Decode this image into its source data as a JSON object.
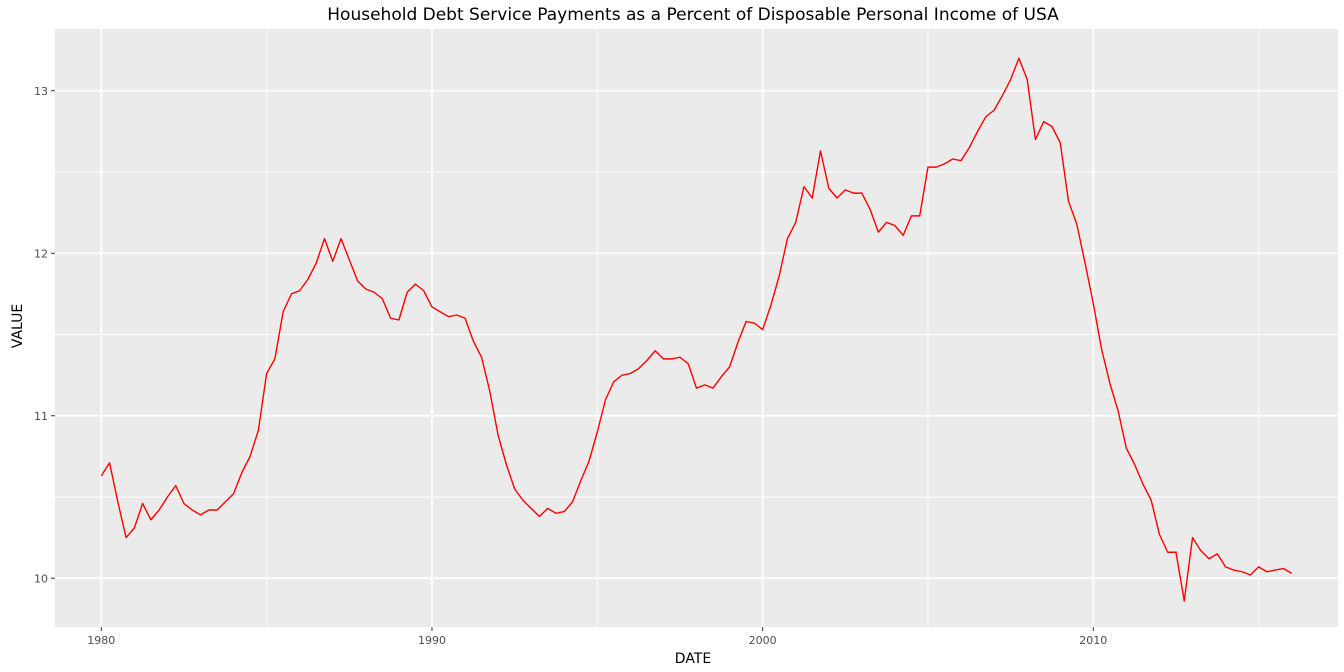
{
  "chart_data": {
    "type": "line",
    "title": "Household Debt Service Payments as a Percent of Disposable Personal Income of USA",
    "xlabel": "DATE",
    "ylabel": "VALUE",
    "xlim": [
      1978.6,
      2017.4
    ],
    "ylim": [
      9.7,
      13.38
    ],
    "x_ticks": [
      1980,
      1990,
      2000,
      2010
    ],
    "y_ticks": [
      10,
      11,
      12,
      13
    ],
    "grid": true,
    "legend": "none",
    "colors": {
      "panel_background": "#EBEBEB",
      "grid_major": "#FFFFFF",
      "series_line": "#FF0000",
      "tick_label": "#4D4D4D",
      "axis_title": "#000000"
    },
    "series": [
      {
        "points": [
          [
            1980.0,
            10.63
          ],
          [
            1980.25,
            10.71
          ],
          [
            1980.5,
            10.47
          ],
          [
            1980.75,
            10.25
          ],
          [
            1981.0,
            10.31
          ],
          [
            1981.25,
            10.46
          ],
          [
            1981.5,
            10.36
          ],
          [
            1981.75,
            10.42
          ],
          [
            1982.0,
            10.5
          ],
          [
            1982.25,
            10.57
          ],
          [
            1982.5,
            10.46
          ],
          [
            1982.75,
            10.42
          ],
          [
            1983.0,
            10.39
          ],
          [
            1983.25,
            10.42
          ],
          [
            1983.5,
            10.42
          ],
          [
            1983.75,
            10.47
          ],
          [
            1984.0,
            10.52
          ],
          [
            1984.25,
            10.65
          ],
          [
            1984.5,
            10.75
          ],
          [
            1984.75,
            10.91
          ],
          [
            1985.0,
            11.26
          ],
          [
            1985.25,
            11.35
          ],
          [
            1985.5,
            11.64
          ],
          [
            1985.75,
            11.75
          ],
          [
            1986.0,
            11.77
          ],
          [
            1986.25,
            11.84
          ],
          [
            1986.5,
            11.94
          ],
          [
            1986.75,
            12.09
          ],
          [
            1987.0,
            11.95
          ],
          [
            1987.25,
            12.09
          ],
          [
            1987.5,
            11.96
          ],
          [
            1987.75,
            11.83
          ],
          [
            1988.0,
            11.78
          ],
          [
            1988.25,
            11.76
          ],
          [
            1988.5,
            11.72
          ],
          [
            1988.75,
            11.6
          ],
          [
            1989.0,
            11.59
          ],
          [
            1989.25,
            11.76
          ],
          [
            1989.5,
            11.81
          ],
          [
            1989.75,
            11.77
          ],
          [
            1990.0,
            11.67
          ],
          [
            1990.25,
            11.64
          ],
          [
            1990.5,
            11.61
          ],
          [
            1990.75,
            11.62
          ],
          [
            1991.0,
            11.6
          ],
          [
            1991.25,
            11.46
          ],
          [
            1991.5,
            11.36
          ],
          [
            1991.75,
            11.15
          ],
          [
            1992.0,
            10.88
          ],
          [
            1992.25,
            10.7
          ],
          [
            1992.5,
            10.55
          ],
          [
            1992.75,
            10.48
          ],
          [
            1993.0,
            10.43
          ],
          [
            1993.25,
            10.38
          ],
          [
            1993.5,
            10.43
          ],
          [
            1993.75,
            10.4
          ],
          [
            1994.0,
            10.41
          ],
          [
            1994.25,
            10.47
          ],
          [
            1994.5,
            10.6
          ],
          [
            1994.75,
            10.72
          ],
          [
            1995.0,
            10.9
          ],
          [
            1995.25,
            11.1
          ],
          [
            1995.5,
            11.21
          ],
          [
            1995.75,
            11.25
          ],
          [
            1996.0,
            11.26
          ],
          [
            1996.25,
            11.29
          ],
          [
            1996.5,
            11.34
          ],
          [
            1996.75,
            11.4
          ],
          [
            1997.0,
            11.35
          ],
          [
            1997.25,
            11.35
          ],
          [
            1997.5,
            11.36
          ],
          [
            1997.75,
            11.32
          ],
          [
            1998.0,
            11.17
          ],
          [
            1998.25,
            11.19
          ],
          [
            1998.5,
            11.17
          ],
          [
            1998.75,
            11.24
          ],
          [
            1999.0,
            11.3
          ],
          [
            1999.25,
            11.45
          ],
          [
            1999.5,
            11.58
          ],
          [
            1999.75,
            11.57
          ],
          [
            2000.0,
            11.53
          ],
          [
            2000.25,
            11.68
          ],
          [
            2000.5,
            11.86
          ],
          [
            2000.75,
            12.09
          ],
          [
            2001.0,
            12.19
          ],
          [
            2001.25,
            12.41
          ],
          [
            2001.5,
            12.34
          ],
          [
            2001.75,
            12.63
          ],
          [
            2002.0,
            12.4
          ],
          [
            2002.25,
            12.34
          ],
          [
            2002.5,
            12.39
          ],
          [
            2002.75,
            12.37
          ],
          [
            2003.0,
            12.37
          ],
          [
            2003.25,
            12.27
          ],
          [
            2003.5,
            12.13
          ],
          [
            2003.75,
            12.19
          ],
          [
            2004.0,
            12.17
          ],
          [
            2004.25,
            12.11
          ],
          [
            2004.5,
            12.23
          ],
          [
            2004.75,
            12.23
          ],
          [
            2005.0,
            12.53
          ],
          [
            2005.25,
            12.53
          ],
          [
            2005.5,
            12.55
          ],
          [
            2005.75,
            12.58
          ],
          [
            2006.0,
            12.57
          ],
          [
            2006.25,
            12.65
          ],
          [
            2006.5,
            12.75
          ],
          [
            2006.75,
            12.84
          ],
          [
            2007.0,
            12.88
          ],
          [
            2007.25,
            12.97
          ],
          [
            2007.5,
            13.07
          ],
          [
            2007.75,
            13.2
          ],
          [
            2008.0,
            13.07
          ],
          [
            2008.25,
            12.7
          ],
          [
            2008.5,
            12.81
          ],
          [
            2008.75,
            12.78
          ],
          [
            2009.0,
            12.68
          ],
          [
            2009.25,
            12.32
          ],
          [
            2009.5,
            12.18
          ],
          [
            2009.75,
            11.94
          ],
          [
            2010.0,
            11.69
          ],
          [
            2010.25,
            11.41
          ],
          [
            2010.5,
            11.2
          ],
          [
            2010.75,
            11.03
          ],
          [
            2011.0,
            10.8
          ],
          [
            2011.25,
            10.7
          ],
          [
            2011.5,
            10.58
          ],
          [
            2011.75,
            10.48
          ],
          [
            2012.0,
            10.27
          ],
          [
            2012.25,
            10.16
          ],
          [
            2012.5,
            10.16
          ],
          [
            2012.75,
            9.86
          ],
          [
            2013.0,
            10.25
          ],
          [
            2013.25,
            10.17
          ],
          [
            2013.5,
            10.12
          ],
          [
            2013.75,
            10.15
          ],
          [
            2014.0,
            10.07
          ],
          [
            2014.25,
            10.05
          ],
          [
            2014.5,
            10.04
          ],
          [
            2014.75,
            10.02
          ],
          [
            2015.0,
            10.07
          ],
          [
            2015.25,
            10.04
          ],
          [
            2015.5,
            10.05
          ],
          [
            2015.75,
            10.06
          ],
          [
            2016.0,
            10.03
          ]
        ]
      }
    ]
  }
}
